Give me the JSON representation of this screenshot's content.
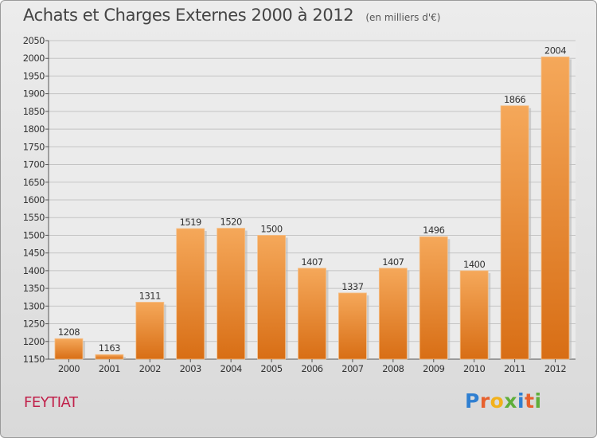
{
  "header": {
    "title": "Achats et Charges Externes 2000 à 2012",
    "subtitle": "(en milliers d'€)"
  },
  "footer": {
    "commune": "FEYTIAT",
    "logo_letters": [
      {
        "ch": "P",
        "color": "#2f7fd1"
      },
      {
        "ch": "r",
        "color": "#e7612e"
      },
      {
        "ch": "o",
        "color": "#f2b11b"
      },
      {
        "ch": "x",
        "color": "#5fae3a"
      },
      {
        "ch": "i",
        "color": "#2f7fd1"
      },
      {
        "ch": "t",
        "color": "#e7612e"
      },
      {
        "ch": "i",
        "color": "#5fae3a"
      }
    ]
  },
  "colors": {
    "bar_light": "#f5a85a",
    "bar_dark": "#d86e15",
    "grid": "#c4c4c4",
    "axis": "#555555",
    "accent": "#c0204a"
  },
  "chart_data": {
    "type": "bar",
    "categories": [
      "2000",
      "2001",
      "2002",
      "2003",
      "2004",
      "2005",
      "2006",
      "2007",
      "2008",
      "2009",
      "2010",
      "2011",
      "2012"
    ],
    "values": [
      1208,
      1163,
      1311,
      1519,
      1520,
      1500,
      1407,
      1337,
      1407,
      1496,
      1400,
      1866,
      2004
    ],
    "ylim": [
      1150,
      2050
    ],
    "yticks": [
      1150,
      1200,
      1250,
      1300,
      1350,
      1400,
      1450,
      1500,
      1550,
      1600,
      1650,
      1700,
      1750,
      1800,
      1850,
      1900,
      1950,
      2000,
      2050
    ],
    "grid": true
  }
}
